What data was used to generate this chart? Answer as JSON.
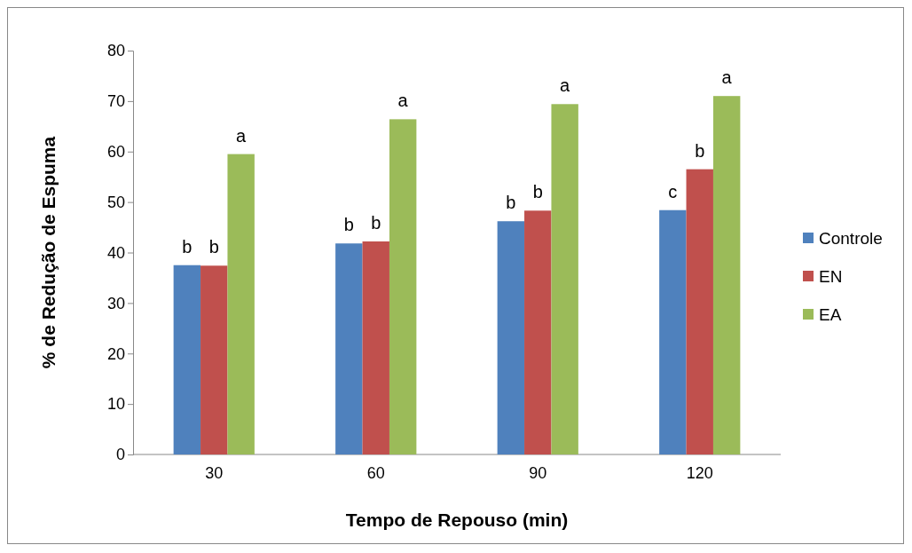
{
  "chart_data": {
    "type": "bar",
    "xlabel": "Tempo de Repouso (min)",
    "ylabel": "% de Redução de Espuma",
    "categories": [
      "30",
      "60",
      "90",
      "120"
    ],
    "series": [
      {
        "name": "Controle",
        "color": "#4f81bd",
        "values": [
          37.5,
          41.8,
          46.2,
          48.4
        ],
        "value_labels": [
          "b",
          "b",
          "b",
          "c"
        ]
      },
      {
        "name": "EN",
        "color": "#c0504d",
        "values": [
          37.4,
          42.2,
          48.3,
          56.5
        ],
        "value_labels": [
          "b",
          "b",
          "b",
          "b"
        ]
      },
      {
        "name": "EA",
        "color": "#9bbb59",
        "values": [
          59.5,
          66.4,
          69.4,
          71.0
        ],
        "value_labels": [
          "a",
          "a",
          "a",
          "a"
        ]
      }
    ],
    "ylim": [
      0,
      80
    ],
    "yticks": [
      0,
      10,
      20,
      30,
      40,
      50,
      60,
      70,
      80
    ],
    "grid": false,
    "legend": "right"
  }
}
